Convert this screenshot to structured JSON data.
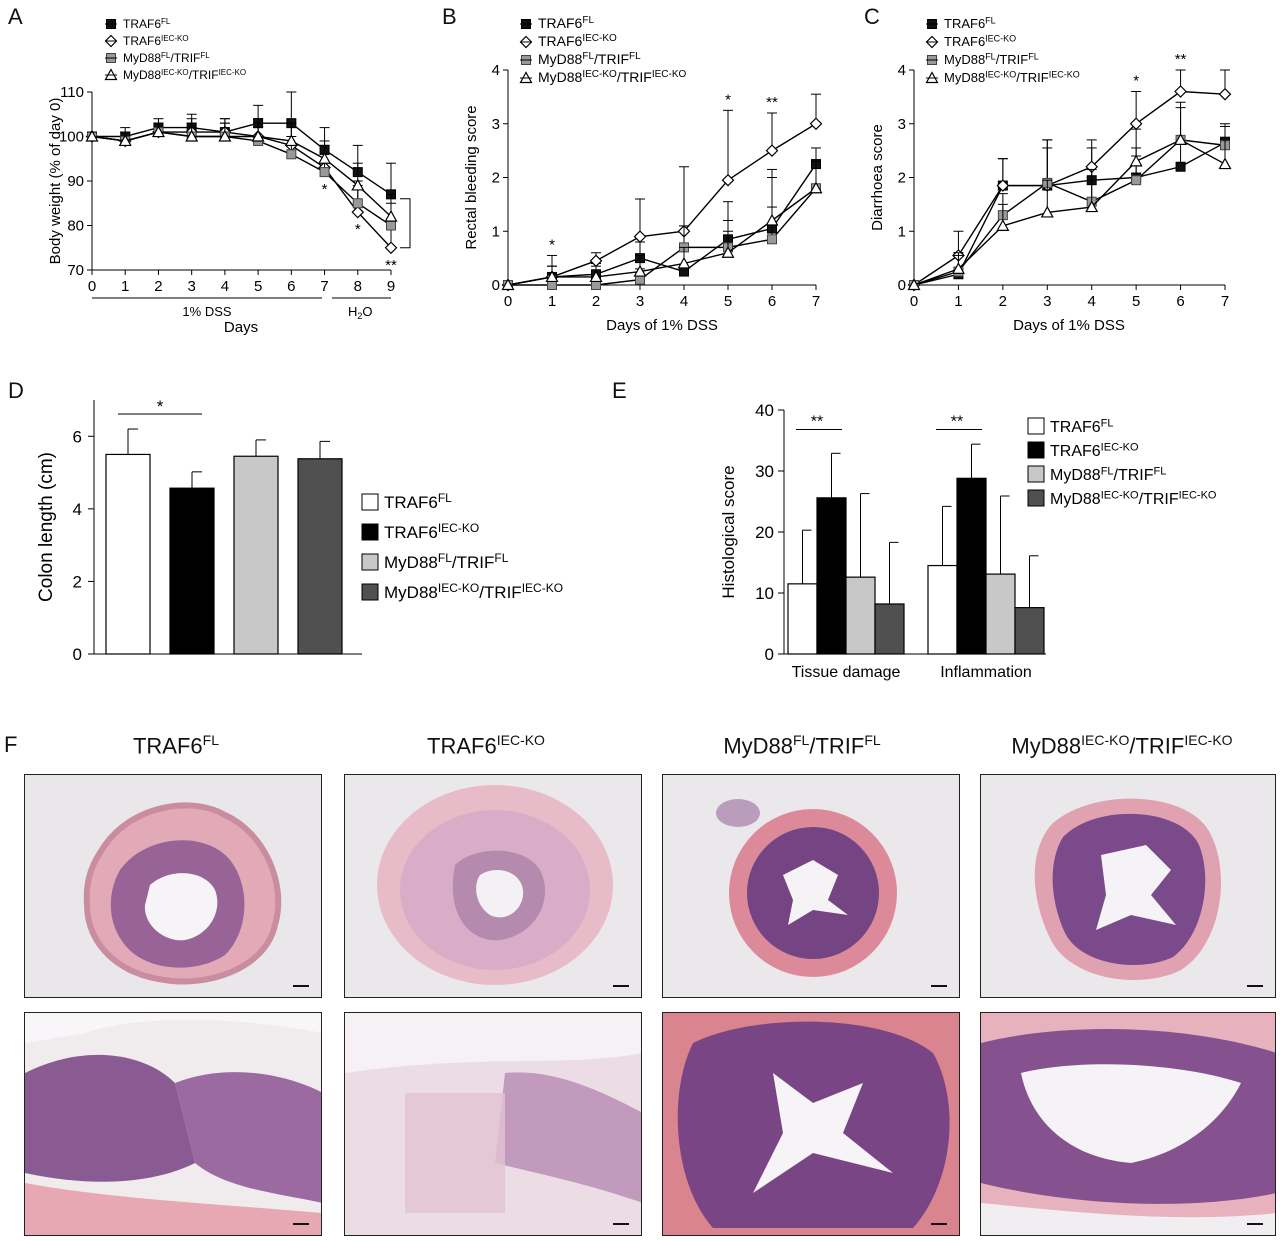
{
  "panels": {
    "A": "A",
    "B": "B",
    "C": "C",
    "D": "D",
    "E": "E",
    "F": "F"
  },
  "colors": {
    "traf6_fl": "#111111",
    "traf6_iec_ko": "#ffffff",
    "myd88_fl": "#999999",
    "myd88_iec_ko": "#ffffff",
    "bar_traf6_fl": "#ffffff",
    "bar_traf6_iec_ko": "#000000",
    "bar_myd88_fl": "#c8c8c8",
    "bar_myd88_iec_ko": "#505050",
    "tissue_pink": "#e3a6b3",
    "tissue_purple": "#6e3f84",
    "slide_bg": "#ebe8ec"
  },
  "legend_lines": [
    {
      "base": "TRAF6",
      "sup": "FL",
      "marker": "square-filled"
    },
    {
      "base": "TRAF6",
      "sup": "IEC-KO",
      "marker": "diamond-open"
    },
    {
      "base": "MyD88",
      "sup": "FL",
      "base2": "/TRIF",
      "sup2": "FL",
      "marker": "square-grey"
    },
    {
      "base": "MyD88",
      "sup": "IEC-KO",
      "base2": "/TRIF",
      "sup2": "IEC-KO",
      "marker": "triangle-open"
    }
  ],
  "legend_bars": [
    {
      "base": "TRAF6",
      "sup": "FL"
    },
    {
      "base": "TRAF6",
      "sup": "IEC-KO"
    },
    {
      "base": "MyD88",
      "sup": "FL",
      "base2": "/TRIF",
      "sup2": "FL"
    },
    {
      "base": "MyD88",
      "sup": "IEC-KO",
      "base2": "/TRIF",
      "sup2": "IEC-KO"
    }
  ],
  "chart_data": [
    {
      "panel": "A",
      "type": "line",
      "ylabel": "Body weight (% of day 0)",
      "xlabel": "Days",
      "x": [
        0,
        1,
        2,
        3,
        4,
        5,
        6,
        7,
        8,
        9
      ],
      "ylim": [
        70,
        110
      ],
      "yticks": [
        70,
        80,
        90,
        100,
        110
      ],
      "period_labels": {
        "dss": "1% DSS",
        "water": "H",
        "water_sub": "2",
        "water_tail": "O"
      },
      "series": [
        {
          "name": "TRAF6FL",
          "values": [
            100,
            100,
            102,
            102,
            101,
            103,
            103,
            97,
            92,
            87
          ],
          "err": [
            1,
            2,
            2,
            3,
            3,
            4,
            7,
            5,
            6,
            7
          ]
        },
        {
          "name": "TRAF6IEC-KO",
          "values": [
            100,
            99,
            101,
            101,
            101,
            100,
            98,
            93,
            83,
            75
          ],
          "err": [
            1,
            2,
            2,
            3,
            3,
            4,
            5,
            5,
            6,
            5
          ]
        },
        {
          "name": "MyD88FL/TRIFFL",
          "values": [
            100,
            99,
            101,
            100,
            100,
            99,
            96,
            92,
            85,
            80
          ],
          "err": [
            1,
            1,
            2,
            3,
            3,
            3,
            4,
            4,
            5,
            5
          ]
        },
        {
          "name": "MyD88IEC-KO/TRIFIEC-KO",
          "values": [
            100,
            99,
            101,
            100,
            100,
            100,
            99,
            95,
            89,
            82
          ],
          "err": [
            1,
            2,
            2,
            2,
            3,
            3,
            4,
            4,
            5,
            5
          ]
        }
      ],
      "annotations": [
        {
          "x": 7,
          "text": "*"
        },
        {
          "x": 8,
          "text": "*"
        },
        {
          "x": 9,
          "text": "**"
        }
      ]
    },
    {
      "panel": "B",
      "type": "line",
      "ylabel": "Rectal bleeding score",
      "xlabel": "Days of 1% DSS",
      "x": [
        0,
        1,
        2,
        3,
        4,
        5,
        6,
        7
      ],
      "ylim": [
        0,
        4
      ],
      "yticks": [
        0,
        1,
        2,
        3,
        4
      ],
      "series": [
        {
          "name": "TRAF6FL",
          "values": [
            0,
            0.15,
            0.2,
            0.5,
            0.25,
            0.85,
            1.05,
            2.25
          ],
          "err": [
            0,
            0.2,
            0.2,
            0.3,
            0.4,
            0.7,
            1.1,
            0.3
          ]
        },
        {
          "name": "TRAF6IEC-KO",
          "values": [
            0,
            0.15,
            0.45,
            0.9,
            1.0,
            1.95,
            2.5,
            3.0
          ],
          "err": [
            0,
            0.4,
            0.15,
            0.7,
            1.2,
            1.3,
            0.7,
            0.55
          ]
        },
        {
          "name": "MyD88FL/TRIFFL",
          "values": [
            0,
            0,
            0,
            0.1,
            0.7,
            0.7,
            0.85,
            1.8
          ],
          "err": [
            0,
            0.1,
            0.1,
            0.2,
            0.4,
            0.5,
            0.6,
            0.5
          ]
        },
        {
          "name": "MyD88IEC-KO/TRIFIEC-KO",
          "values": [
            0,
            0.15,
            0.15,
            0.25,
            0.4,
            0.6,
            1.2,
            1.8
          ],
          "err": [
            0,
            0.2,
            0.2,
            0.3,
            0.3,
            0.4,
            0.8,
            0.5
          ]
        }
      ],
      "annotations": [
        {
          "x": 1,
          "text": "*"
        },
        {
          "x": 5,
          "text": "*"
        },
        {
          "x": 6,
          "text": "**"
        }
      ]
    },
    {
      "panel": "C",
      "type": "line",
      "ylabel": "Diarrhoea score",
      "xlabel": "Days of 1% DSS",
      "x": [
        0,
        1,
        2,
        3,
        4,
        5,
        6,
        7
      ],
      "ylim": [
        0,
        4
      ],
      "yticks": [
        0,
        1,
        2,
        3,
        4
      ],
      "series": [
        {
          "name": "TRAF6FL",
          "values": [
            0,
            0.2,
            1.85,
            1.85,
            1.95,
            2.0,
            2.2,
            2.65
          ],
          "err": [
            0,
            0.4,
            0.5,
            0.7,
            0.6,
            0.4,
            0.5,
            0.3
          ]
        },
        {
          "name": "TRAF6IEC-KO",
          "values": [
            0,
            0.55,
            1.85,
            1.85,
            2.2,
            3.0,
            3.6,
            3.55
          ],
          "err": [
            0,
            0.45,
            0.5,
            0.85,
            0.5,
            0.6,
            0.4,
            0.45
          ]
        },
        {
          "name": "MyD88FL/TRIFFL",
          "values": [
            0,
            0.25,
            1.3,
            1.9,
            1.55,
            1.95,
            2.7,
            2.6
          ],
          "err": [
            0,
            0.3,
            0.4,
            0.8,
            0.6,
            0.6,
            0.7,
            0.4
          ]
        },
        {
          "name": "MyD88IEC-KO/TRIFIEC-KO",
          "values": [
            0,
            0.3,
            1.1,
            1.35,
            1.45,
            2.3,
            2.7,
            2.25
          ],
          "err": [
            0,
            0.3,
            0.4,
            0.6,
            0.5,
            0.6,
            0.6,
            0.5
          ]
        }
      ],
      "annotations": [
        {
          "x": 5,
          "text": "*"
        },
        {
          "x": 6,
          "text": "**"
        }
      ]
    },
    {
      "panel": "D",
      "type": "bar",
      "ylabel": "Colon length (cm)",
      "ylim": [
        0,
        7
      ],
      "yticks": [
        0,
        2,
        4,
        6
      ],
      "values": [
        5.5,
        4.57,
        5.45,
        5.38
      ],
      "err": [
        0.7,
        0.45,
        0.45,
        0.48
      ],
      "annotations": [
        {
          "from": 0,
          "to": 1,
          "text": "*"
        }
      ]
    },
    {
      "panel": "E",
      "type": "bar",
      "ylabel": "Histological score",
      "categories": [
        "Tissue damage",
        "Inflammation"
      ],
      "ylim": [
        0,
        40
      ],
      "yticks": [
        0,
        10,
        20,
        30,
        40
      ],
      "series": [
        {
          "name": "TRAF6FL",
          "values": [
            11.5,
            14.5
          ],
          "err": [
            8.8,
            9.7
          ]
        },
        {
          "name": "TRAF6IEC-KO",
          "values": [
            25.6,
            28.8
          ],
          "err": [
            7.3,
            5.6
          ]
        },
        {
          "name": "MyD88FL/TRIFFL",
          "values": [
            12.6,
            13.1
          ],
          "err": [
            13.7,
            12.8
          ]
        },
        {
          "name": "MyD88IEC-KO/TRIFIEC-KO",
          "values": [
            8.2,
            7.6
          ],
          "err": [
            10.1,
            8.5
          ]
        }
      ],
      "annotations": [
        {
          "group": 0,
          "text": "**"
        },
        {
          "group": 1,
          "text": "**"
        }
      ]
    }
  ],
  "histology": {
    "titles": [
      {
        "base": "TRAF6",
        "sup": "FL"
      },
      {
        "base": "TRAF6",
        "sup": "IEC-KO"
      },
      {
        "base": "MyD88",
        "sup": "FL",
        "base2": "/TRIF",
        "sup2": "FL"
      },
      {
        "base": "MyD88",
        "sup": "IEC-KO",
        "base2": "/TRIF",
        "sup2": "IEC-KO"
      }
    ]
  }
}
